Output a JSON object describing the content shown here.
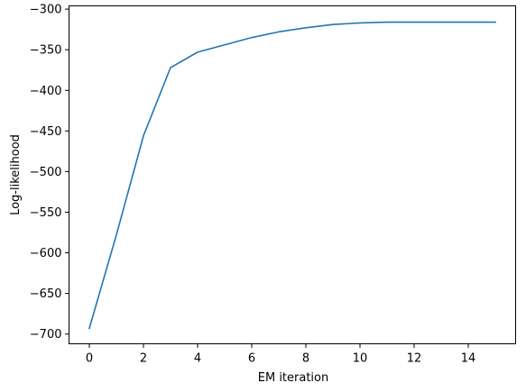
{
  "chart_data": {
    "type": "line",
    "title": "",
    "xlabel": "EM iteration",
    "ylabel": "Log-likelihood",
    "xlim": [
      -0.75,
      15.75
    ],
    "ylim": [
      -712,
      -296
    ],
    "x_ticks": [
      0,
      2,
      4,
      6,
      8,
      10,
      12,
      14
    ],
    "y_ticks": [
      -700,
      -650,
      -600,
      -550,
      -500,
      -450,
      -400,
      -350,
      -300
    ],
    "x_tick_labels": [
      "0",
      "2",
      "4",
      "6",
      "8",
      "10",
      "12",
      "14"
    ],
    "y_tick_labels": [
      "−700",
      "−650",
      "−600",
      "−550",
      "−500",
      "−450",
      "−400",
      "−350",
      "−300"
    ],
    "grid": false,
    "series": [
      {
        "color": "#1f77b4",
        "x": [
          0,
          1,
          2,
          3,
          4,
          5,
          6,
          7,
          8,
          9,
          10,
          11,
          12,
          13,
          14,
          15
        ],
        "y": [
          -693,
          -578,
          -456,
          -372,
          -353,
          -344,
          -335,
          -328,
          -323,
          -319,
          -317,
          -316,
          -316,
          -316,
          -316,
          -316
        ]
      }
    ]
  }
}
